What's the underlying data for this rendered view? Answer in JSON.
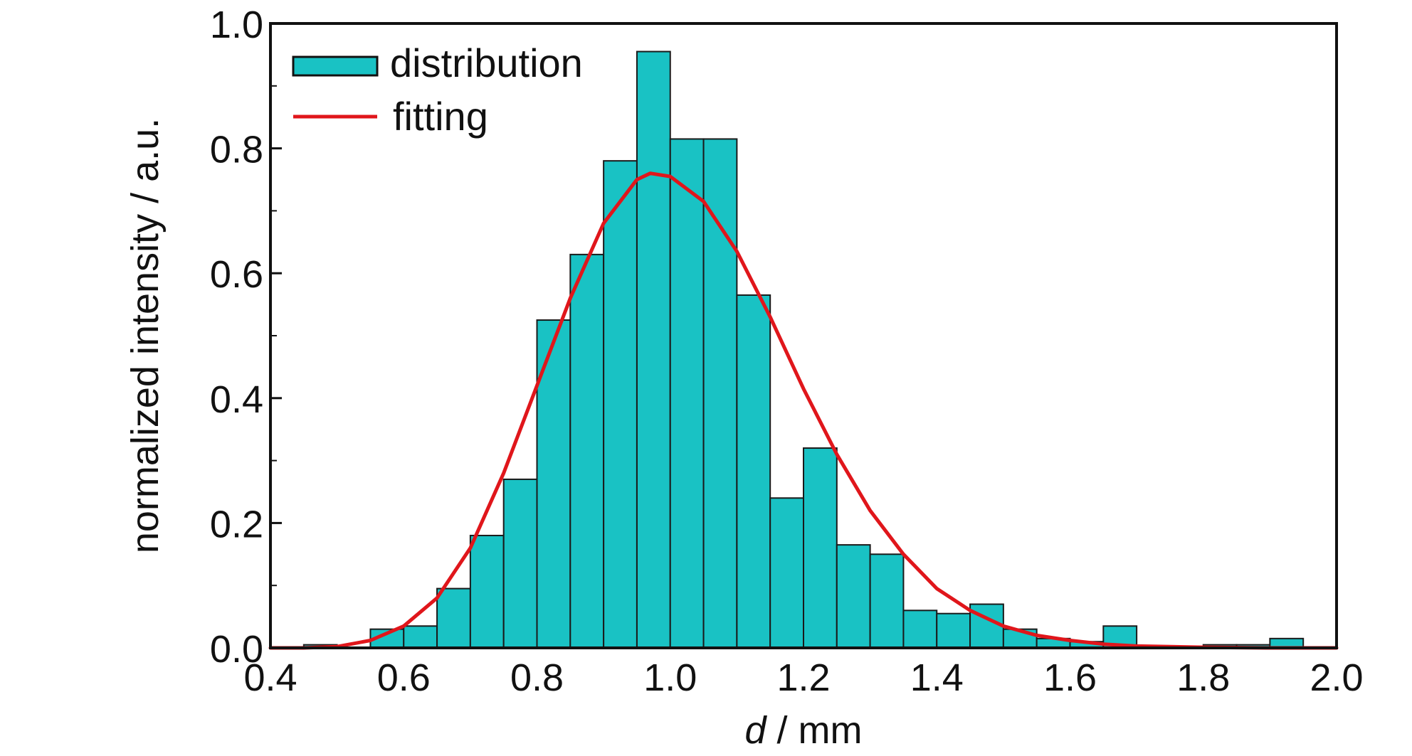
{
  "chart_data": {
    "type": "bar",
    "title": "",
    "xlabel_var": "d",
    "xlabel_rest": " / mm",
    "ylabel": "normalized intensity / a.u.",
    "xlim": [
      0.4,
      2.0
    ],
    "ylim": [
      0.0,
      1.0
    ],
    "x_ticks": [
      "0.4",
      "0.6",
      "0.8",
      "1.0",
      "1.2",
      "1.4",
      "1.6",
      "1.8",
      "2.0"
    ],
    "y_ticks": [
      "0.0",
      "0.2",
      "0.4",
      "0.6",
      "0.8",
      "1.0"
    ],
    "grid": false,
    "legend_position": "top-left",
    "bin_width": 0.05,
    "series": [
      {
        "name": "distribution",
        "type": "histogram",
        "color": "#19c2c4",
        "bins": [
          {
            "x": 0.425,
            "value": 0.0
          },
          {
            "x": 0.475,
            "value": 0.005
          },
          {
            "x": 0.525,
            "value": 0.0
          },
          {
            "x": 0.575,
            "value": 0.03
          },
          {
            "x": 0.625,
            "value": 0.035
          },
          {
            "x": 0.675,
            "value": 0.095
          },
          {
            "x": 0.725,
            "value": 0.18
          },
          {
            "x": 0.775,
            "value": 0.27
          },
          {
            "x": 0.825,
            "value": 0.525
          },
          {
            "x": 0.875,
            "value": 0.63
          },
          {
            "x": 0.925,
            "value": 0.78
          },
          {
            "x": 0.975,
            "value": 0.955
          },
          {
            "x": 1.025,
            "value": 0.815
          },
          {
            "x": 1.075,
            "value": 0.815
          },
          {
            "x": 1.125,
            "value": 0.565
          },
          {
            "x": 1.175,
            "value": 0.24
          },
          {
            "x": 1.225,
            "value": 0.32
          },
          {
            "x": 1.275,
            "value": 0.165
          },
          {
            "x": 1.325,
            "value": 0.15
          },
          {
            "x": 1.375,
            "value": 0.06
          },
          {
            "x": 1.425,
            "value": 0.055
          },
          {
            "x": 1.475,
            "value": 0.07
          },
          {
            "x": 1.525,
            "value": 0.03
          },
          {
            "x": 1.575,
            "value": 0.015
          },
          {
            "x": 1.625,
            "value": 0.01
          },
          {
            "x": 1.675,
            "value": 0.035
          },
          {
            "x": 1.725,
            "value": 0.0
          },
          {
            "x": 1.775,
            "value": 0.0
          },
          {
            "x": 1.825,
            "value": 0.005
          },
          {
            "x": 1.875,
            "value": 0.005
          },
          {
            "x": 1.925,
            "value": 0.015
          },
          {
            "x": 1.975,
            "value": 0.0
          }
        ]
      },
      {
        "name": "fitting",
        "type": "line",
        "color": "#e0161b",
        "points": [
          {
            "x": 0.4,
            "y": 0.0
          },
          {
            "x": 0.45,
            "y": 0.0
          },
          {
            "x": 0.5,
            "y": 0.002
          },
          {
            "x": 0.55,
            "y": 0.012
          },
          {
            "x": 0.6,
            "y": 0.035
          },
          {
            "x": 0.65,
            "y": 0.08
          },
          {
            "x": 0.7,
            "y": 0.16
          },
          {
            "x": 0.75,
            "y": 0.28
          },
          {
            "x": 0.8,
            "y": 0.42
          },
          {
            "x": 0.85,
            "y": 0.56
          },
          {
            "x": 0.9,
            "y": 0.68
          },
          {
            "x": 0.95,
            "y": 0.75
          },
          {
            "x": 0.97,
            "y": 0.76
          },
          {
            "x": 1.0,
            "y": 0.755
          },
          {
            "x": 1.05,
            "y": 0.715
          },
          {
            "x": 1.1,
            "y": 0.635
          },
          {
            "x": 1.15,
            "y": 0.53
          },
          {
            "x": 1.2,
            "y": 0.415
          },
          {
            "x": 1.25,
            "y": 0.31
          },
          {
            "x": 1.3,
            "y": 0.22
          },
          {
            "x": 1.35,
            "y": 0.15
          },
          {
            "x": 1.4,
            "y": 0.095
          },
          {
            "x": 1.45,
            "y": 0.06
          },
          {
            "x": 1.5,
            "y": 0.035
          },
          {
            "x": 1.55,
            "y": 0.02
          },
          {
            "x": 1.6,
            "y": 0.012
          },
          {
            "x": 1.65,
            "y": 0.006
          },
          {
            "x": 1.7,
            "y": 0.003
          },
          {
            "x": 1.8,
            "y": 0.001
          },
          {
            "x": 1.9,
            "y": 0.0
          },
          {
            "x": 2.0,
            "y": 0.0
          }
        ]
      }
    ]
  }
}
